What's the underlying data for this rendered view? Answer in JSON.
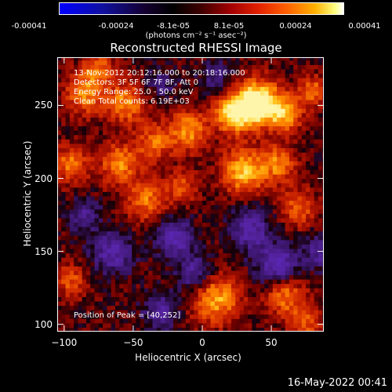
{
  "colorbar": {
    "ticks": [
      "-0.00041",
      "-0.00024",
      "-8.1e-05",
      "8.1e-05",
      "0.00024",
      "0.00041"
    ],
    "units": "(photons cm⁻² s⁻¹ asec⁻²)"
  },
  "info": {
    "time_range": "13-Nov-2012 20:12:16.000 to 20:18:16.000",
    "detectors": "Detectors: 3F 5F 6F 7F 8F, Att 0",
    "energy": "Energy Range: 25.0 - 50.0 keV",
    "clean": "Clean     Total counts: 6.19E+03",
    "peak": "Position of Peak = [40,252]"
  },
  "footer": {
    "date": "16-May-2022 00:41"
  },
  "chart_data": {
    "type": "heatmap",
    "title": "Reconstructed RHESSI Image",
    "xlabel": "Heliocentric X (arcsec)",
    "ylabel": "Heliocentric Y (arcsec)",
    "xlim": [
      -105,
      88
    ],
    "ylim": [
      95,
      283
    ],
    "x_ticks": [
      -100,
      -50,
      0,
      50
    ],
    "y_ticks": [
      100,
      150,
      200,
      250
    ],
    "colorbar_range": [
      -0.00041,
      0.00041
    ],
    "peak": [
      40,
      252
    ],
    "colors": {
      "low": "#0000ff",
      "mid_low": "#3a1a8a",
      "zero": "#000000",
      "mid_high": "#c01800",
      "high": "#ffb000",
      "max": "#ffffff"
    }
  }
}
